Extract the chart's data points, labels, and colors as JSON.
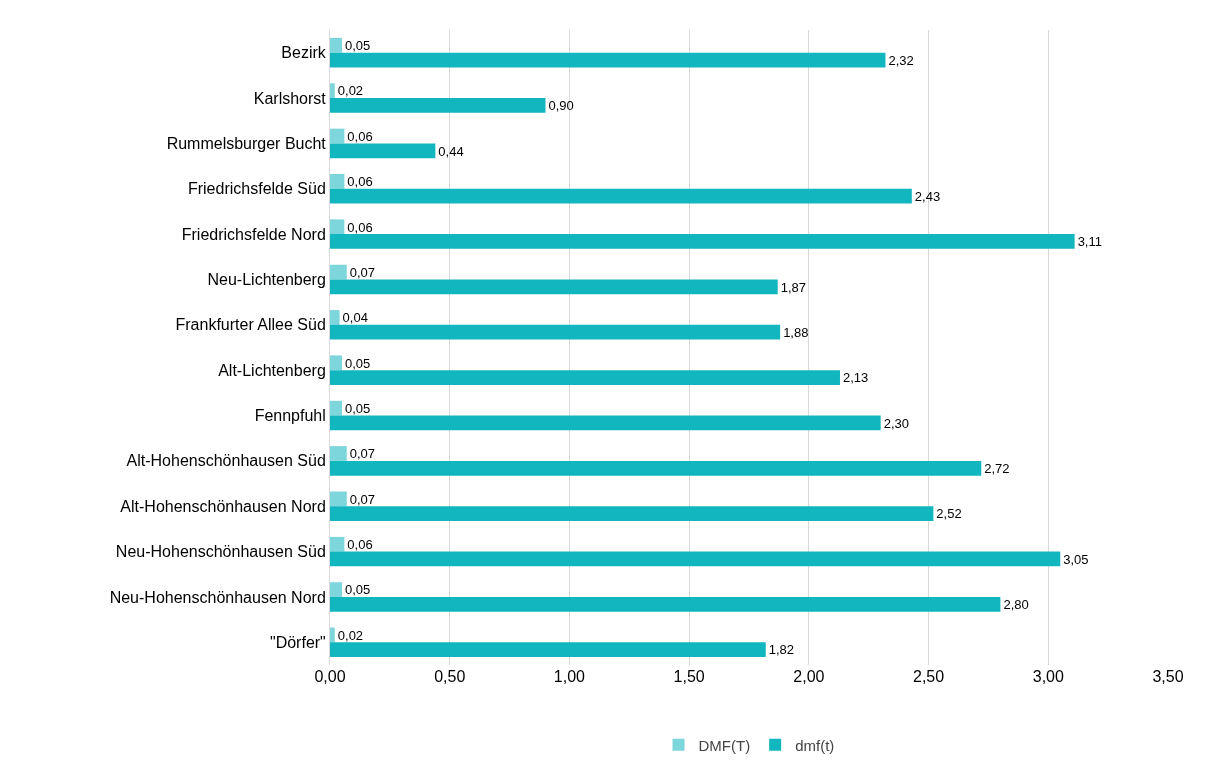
{
  "chart_data": {
    "type": "bar",
    "orientation": "horizontal",
    "categories": [
      "Bezirk",
      "Karlshorst",
      "Rummelsburger Bucht",
      "Friedrichsfelde Süd",
      "Friedrichsfelde Nord",
      "Neu-Lichtenberg",
      "Frankfurter Allee Süd",
      "Alt-Lichtenberg",
      "Fennpfuhl",
      "Alt-Hohenschönhausen Süd",
      "Alt-Hohenschönhausen Nord",
      "Neu-Hohenschönhausen Süd",
      "Neu-Hohenschönhausen Nord",
      "\"Dörfer\""
    ],
    "series": [
      {
        "name": "DMF(T)",
        "color": "#7dd6dc",
        "values": [
          0.05,
          0.02,
          0.06,
          0.06,
          0.06,
          0.07,
          0.04,
          0.05,
          0.05,
          0.07,
          0.07,
          0.06,
          0.05,
          0.02
        ],
        "value_labels": [
          "0,05",
          "0,02",
          "0,06",
          "0,06",
          "0,06",
          "0,07",
          "0,04",
          "0,05",
          "0,05",
          "0,07",
          "0,07",
          "0,06",
          "0,05",
          "0,02"
        ]
      },
      {
        "name": "dmf(t)",
        "color": "#12b6be",
        "values": [
          2.32,
          0.9,
          0.44,
          2.43,
          3.11,
          1.87,
          1.88,
          2.13,
          2.3,
          2.72,
          2.52,
          3.05,
          2.8,
          1.82
        ],
        "value_labels": [
          "2,32",
          "0,90",
          "0,44",
          "2,43",
          "3,11",
          "1,87",
          "1,88",
          "2,13",
          "2,30",
          "2,72",
          "2,52",
          "3,05",
          "2,80",
          "1,82"
        ]
      }
    ],
    "xlim": [
      0,
      3.5
    ],
    "xticks": [
      {
        "value": 0,
        "label": "0,00"
      },
      {
        "value": 0.5,
        "label": "0,50"
      },
      {
        "value": 1,
        "label": "1,00"
      },
      {
        "value": 1.5,
        "label": "1,50"
      },
      {
        "value": 2,
        "label": "2,00"
      },
      {
        "value": 2.5,
        "label": "2,50"
      },
      {
        "value": 3,
        "label": "3,00"
      },
      {
        "value": 3.5,
        "label": "3,50"
      }
    ],
    "grid": "x",
    "legend": "bottom"
  }
}
